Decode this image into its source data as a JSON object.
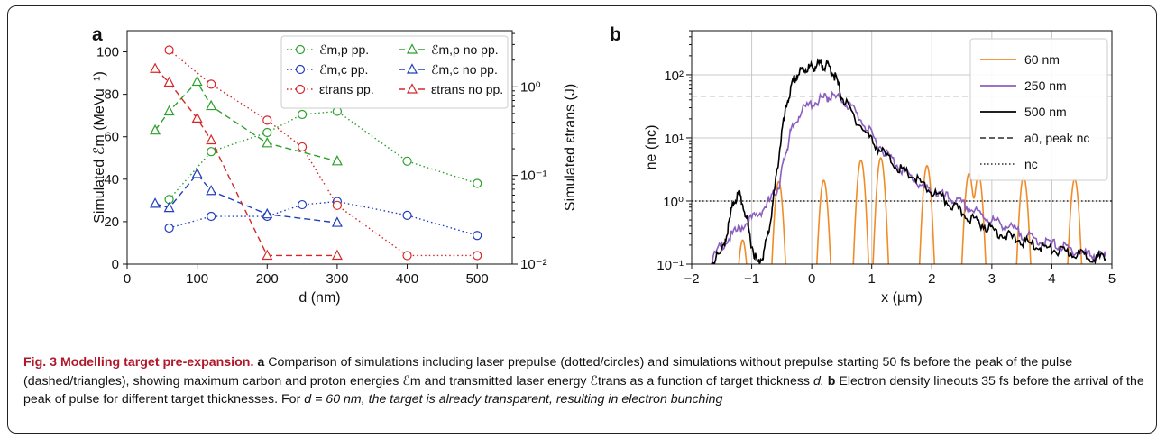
{
  "figure": {
    "label_a": "a",
    "label_b": "b"
  },
  "chart_data": [
    {
      "type": "line",
      "panel": "a",
      "xlabel": "d (nm)",
      "ylabel": "Simulated ℰm (MeVu⁻¹)",
      "y2label": "Simulated εtrans (J)",
      "xlim": [
        0,
        550
      ],
      "ylim": [
        0,
        110
      ],
      "y2lim": [
        0.01,
        4.3
      ],
      "y2scale": "log",
      "xticks": [
        "0",
        "100",
        "200",
        "300",
        "400",
        "500"
      ],
      "yticks": [
        "0",
        "20",
        "40",
        "60",
        "80",
        "100"
      ],
      "y2ticks": [
        "10⁻²",
        "10⁻¹",
        "10⁰"
      ],
      "legend_position": "top-right",
      "series": [
        {
          "name": "ℰm,p pp.",
          "axis": "left",
          "style": "dotted",
          "marker": "circle",
          "color": "#2ca02c",
          "x": [
            60,
            120,
            200,
            250,
            300,
            400,
            500
          ],
          "y": [
            30.5,
            53,
            62,
            70.5,
            72,
            48.5,
            38
          ]
        },
        {
          "name": "ℰm,c pp.",
          "axis": "left",
          "style": "dotted",
          "marker": "circle",
          "color": "#1f3fbf",
          "x": [
            60,
            120,
            200,
            250,
            300,
            400,
            500
          ],
          "y": [
            17,
            22.5,
            22.5,
            28,
            29.5,
            23,
            13.5
          ]
        },
        {
          "name": "εtrans pp.",
          "axis": "right",
          "style": "dotted",
          "marker": "circle",
          "color": "#d62728",
          "x": [
            60,
            120,
            200,
            250,
            300,
            400,
            500
          ],
          "y": [
            2.6,
            1.07,
            0.42,
            0.21,
            0.046,
            0.0125,
            0.0125
          ]
        },
        {
          "name": "ℰm,p no pp.",
          "axis": "left",
          "style": "dashed",
          "marker": "triangle",
          "color": "#2ca02c",
          "x": [
            40,
            60,
            100,
            120,
            200,
            300
          ],
          "y": [
            63,
            72,
            86,
            74.5,
            57,
            48.5
          ]
        },
        {
          "name": "ℰm,c no pp.",
          "axis": "left",
          "style": "dashed",
          "marker": "triangle",
          "color": "#1f3fbf",
          "x": [
            40,
            60,
            100,
            120,
            200,
            300
          ],
          "y": [
            28.5,
            26.5,
            42.5,
            34.5,
            23.5,
            19.5
          ]
        },
        {
          "name": "εtrans no pp.",
          "axis": "right",
          "style": "dashed",
          "marker": "triangle",
          "color": "#d62728",
          "x": [
            40,
            60,
            100,
            120,
            200,
            300
          ],
          "y": [
            1.6,
            1.12,
            0.44,
            0.25,
            0.0125,
            0.0125
          ]
        }
      ]
    },
    {
      "type": "line",
      "panel": "b",
      "xlabel": "x (µm)",
      "ylabel": "ne (nc)",
      "xlim": [
        -2,
        5
      ],
      "ylim": [
        0.1,
        500
      ],
      "yscale": "log",
      "xticks": [
        "−2",
        "−1",
        "0",
        "1",
        "2",
        "3",
        "4",
        "5"
      ],
      "yticks": [
        "10⁻¹",
        "10⁰",
        "10¹",
        "10²"
      ],
      "grid": true,
      "legend_position": "top-right",
      "series": [
        {
          "name": "60 nm",
          "color": "#f08c28",
          "style": "solid",
          "peaks": [
            {
              "c": -1.15,
              "h": 0.22
            },
            {
              "c": -0.55,
              "h": 2.0
            },
            {
              "c": 0.2,
              "h": 2.1
            },
            {
              "c": 0.82,
              "h": 4.4
            },
            {
              "c": 1.15,
              "h": 4.8
            },
            {
              "c": 1.92,
              "h": 3.6
            },
            {
              "c": 2.62,
              "h": 2.7
            },
            {
              "c": 2.78,
              "h": 2.6
            },
            {
              "c": 3.53,
              "h": 2.4
            },
            {
              "c": 4.38,
              "h": 2.2
            }
          ]
        },
        {
          "name": "250 nm",
          "color": "#8c5fbf",
          "style": "solid",
          "x": [
            -1.7,
            -1.5,
            -1.3,
            -1.1,
            -0.9,
            -0.7,
            -0.55,
            -0.45,
            -0.35,
            -0.2,
            0.0,
            0.2,
            0.3,
            0.5,
            0.7,
            0.9,
            1.1,
            1.3,
            1.5,
            1.7,
            1.9,
            2.1,
            2.3,
            2.5,
            2.7,
            2.9,
            3.1,
            3.3,
            3.5,
            3.7,
            3.9,
            4.1,
            4.3,
            4.5,
            4.7,
            4.9
          ],
          "y": [
            0.1,
            0.2,
            0.3,
            0.45,
            0.6,
            1.0,
            1.7,
            5,
            12,
            25,
            35,
            42,
            46,
            40,
            28,
            15,
            8,
            5,
            3.2,
            2.2,
            1.5,
            1.3,
            1.1,
            0.9,
            0.7,
            0.55,
            0.45,
            0.38,
            0.3,
            0.25,
            0.22,
            0.2,
            0.17,
            0.15,
            0.14,
            0.13
          ]
        },
        {
          "name": "500 nm",
          "color": "#000000",
          "style": "solid",
          "x": [
            -1.7,
            -1.5,
            -1.4,
            -1.3,
            -1.2,
            -1.1,
            -1.0,
            -0.9,
            -0.8,
            -0.7,
            -0.6,
            -0.5,
            -0.4,
            -0.3,
            -0.2,
            -0.1,
            0.0,
            0.1,
            0.2,
            0.3,
            0.4,
            0.5,
            0.7,
            0.9,
            1.1,
            1.3,
            1.5,
            1.7,
            1.9,
            2.1,
            2.3,
            2.5,
            2.7,
            2.9,
            3.1,
            3.3,
            3.5,
            3.7,
            3.9,
            4.1,
            4.3,
            4.5,
            4.7,
            4.9
          ],
          "y": [
            0.1,
            0.15,
            0.35,
            1.0,
            1.3,
            0.6,
            0.2,
            0.1,
            0.15,
            0.4,
            2,
            12,
            40,
            80,
            110,
            125,
            130,
            140,
            145,
            130,
            90,
            45,
            22,
            12,
            7,
            4.5,
            3,
            2.4,
            1.6,
            1.2,
            0.9,
            0.65,
            0.5,
            0.4,
            0.32,
            0.27,
            0.23,
            0.2,
            0.18,
            0.16,
            0.15,
            0.14,
            0.13,
            0.12
          ]
        },
        {
          "name": "a0, peak nc",
          "color": "#000000",
          "style": "dashed",
          "constant": 46
        },
        {
          "name": "nc",
          "color": "#000000",
          "style": "dotted",
          "constant": 1
        }
      ]
    }
  ],
  "caption": {
    "title": "Fig. 3 Modelling target pre-expansion.",
    "a_label": "a",
    "a_text": "Comparison of simulations including laser prepulse (dotted/circles) and simulations without prepulse starting 50 fs before the peak of the pulse (dashed/triangles), showing maximum carbon and proton energies ℰm and transmitted laser energy ℰtrans as a function of target thickness",
    "a_var": "d.",
    "b_label": "b",
    "b_text": "Electron density lineouts 35 fs before the arrival of the peak of pulse for different target thicknesses. For",
    "b_eq": "d = 60 nm, the target is already transparent, resulting in electron bunching"
  }
}
